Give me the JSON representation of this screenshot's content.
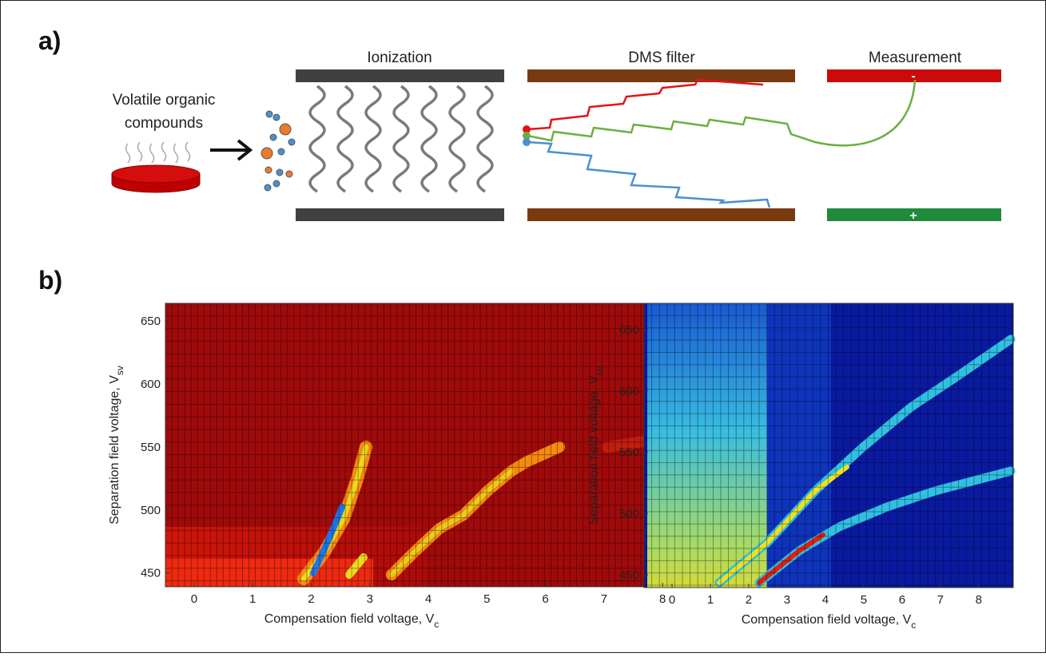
{
  "panel_a": {
    "label": "a)",
    "source_label": [
      "Volatile organic",
      "compounds"
    ],
    "stages": [
      "Ionization",
      "DMS filter",
      "Measurement"
    ],
    "electrode_signs": [
      "-",
      "+"
    ]
  },
  "panel_b": {
    "label": "b)",
    "heatmaps": [
      {
        "xlim": [
          -0.49,
          8.83
        ],
        "ylim": [
          439,
          664
        ],
        "xticks": [
          0,
          1,
          2,
          3,
          4,
          5,
          6,
          7,
          8
        ],
        "yticks": [
          450,
          500,
          550,
          600,
          650
        ],
        "x_label": {
          "text": "Compensation field voltage, V",
          "subscript": "c"
        },
        "y_label": {
          "text": "Separation field voltage, V",
          "subscript": "sv"
        }
      },
      {
        "xlim": [
          -0.73,
          8.9
        ],
        "ylim": [
          439.6,
          671.5
        ],
        "xticks": [
          0,
          1,
          2,
          3,
          4,
          5,
          6,
          7,
          8
        ],
        "yticks": [
          450,
          500,
          550,
          600,
          650
        ],
        "x_label": {
          "text": "Compensation field voltage, V",
          "subscript": "c"
        },
        "y_label": {
          "text": "Separation field voltage, V",
          "subscript": "sv"
        }
      }
    ]
  }
}
